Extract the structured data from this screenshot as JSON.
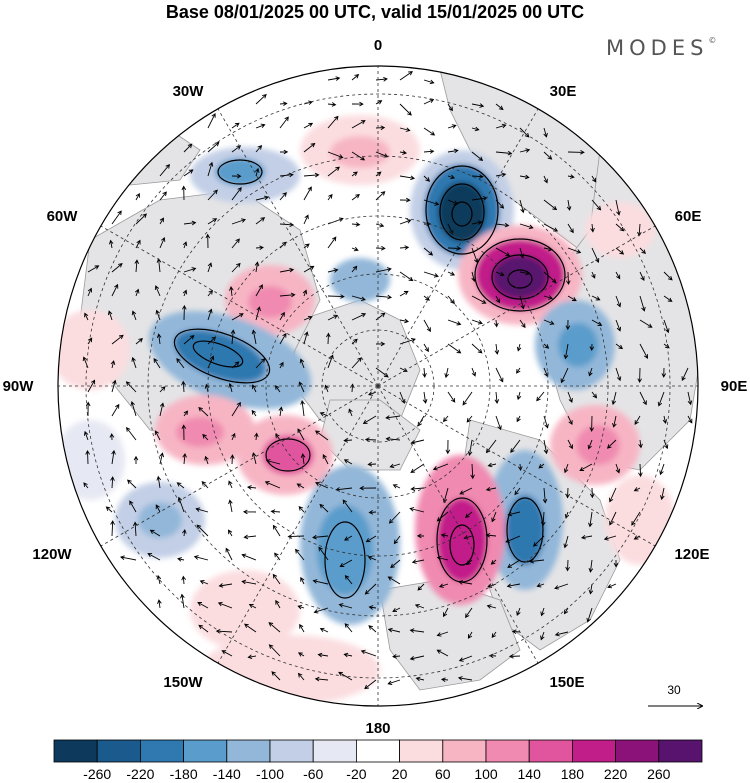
{
  "title": "Base 08/01/2025 00 UTC, valid 15/01/2025 00 UTC",
  "brand": "MODES",
  "brand_mark": "©",
  "longitude_labels": {
    "north": "0",
    "ne": "30E",
    "nne": "60E",
    "east": "90E",
    "se": "120E",
    "sse": "150E",
    "south": "180",
    "ssw": "150W",
    "sw": "120W",
    "west": "90W",
    "nw": "60W",
    "nnw": "30W"
  },
  "vector_reference": {
    "label": "30"
  },
  "colorbar": {
    "labels": [
      "-260",
      "-220",
      "-180",
      "-140",
      "-100",
      "-60",
      "-20",
      "20",
      "60",
      "100",
      "140",
      "180",
      "220",
      "260"
    ],
    "colors": [
      "#0d3a5c",
      "#1b5a8c",
      "#2f78b0",
      "#5a9ccb",
      "#93b7d9",
      "#c2cfe6",
      "#e6e8f3",
      "#ffffff",
      "#fbdde0",
      "#f7b5c4",
      "#f08ab0",
      "#e0559d",
      "#c21e8a",
      "#8a1278",
      "#58136e"
    ]
  }
}
